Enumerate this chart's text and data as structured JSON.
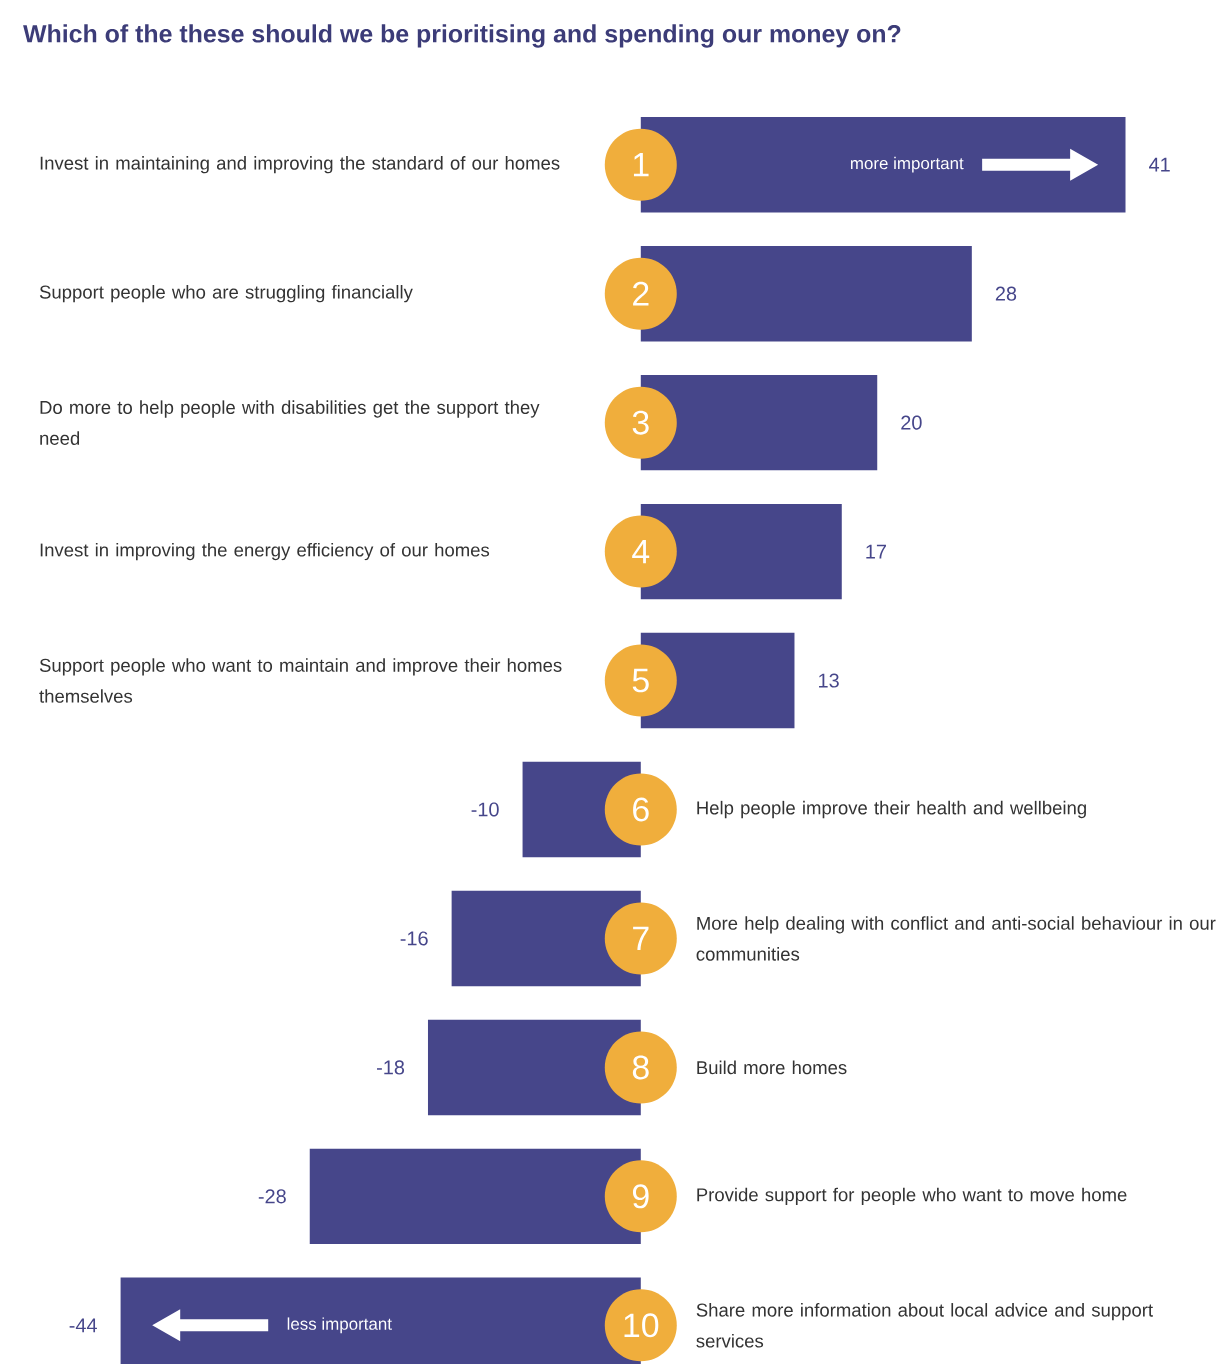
{
  "chart_data": {
    "type": "bar",
    "orientation": "horizontal",
    "title": "Which of the these should we be prioritising and spending our money on?",
    "categories": [
      "Invest in maintaining and improving the standard of our homes",
      "Support people who are struggling financially",
      "Do more to help people with disabilities get the support they need",
      "Invest in improving the energy efficiency of our homes",
      "Support people who want to maintain and improve their homes themselves",
      "Help people improve their health and wellbeing",
      "More help dealing with conflict and anti-social behaviour in our communities",
      "Build more homes",
      "Provide support for people who want to move home",
      "Share more information about local advice and support services"
    ],
    "values": [
      41,
      28,
      20,
      17,
      13,
      -10,
      -16,
      -18,
      -28,
      -44
    ],
    "color": "#46468a",
    "data_labels": true,
    "annotations": [
      {
        "text": "1",
        "x": 0,
        "y": "Invest in maintaining and improving the standard of our homes"
      },
      {
        "text": "2",
        "x": 0,
        "y": "Support people who are struggling financially"
      },
      {
        "text": "3",
        "x": 0,
        "y": "Do more to help people with disabilities get the support they need"
      },
      {
        "text": "4",
        "x": 0,
        "y": "Invest in improving the energy efficiency of our homes"
      },
      {
        "text": "5",
        "x": 0,
        "y": "Support people who want to maintain and improve their homes themselves"
      },
      {
        "text": "6",
        "x": 0,
        "y": "Help people improve their health and wellbeing"
      },
      {
        "text": "7",
        "x": 0,
        "y": "More help dealing with conflict and anti-social behaviour in our communities"
      },
      {
        "text": "8",
        "x": 0,
        "y": "Build more homes"
      },
      {
        "text": "9",
        "x": 0,
        "y": "Provide support for people who want to move home"
      },
      {
        "text": "10",
        "x": 0,
        "y": "Share more information about local advice and support services"
      },
      {
        "text": "more important",
        "x": 22.5,
        "y": "Invest in maintaining and improving the standard of our homes"
      },
      {
        "text": "less important",
        "x": -25.5,
        "y": "Share more information about local advice and support services"
      }
    ]
  }
}
